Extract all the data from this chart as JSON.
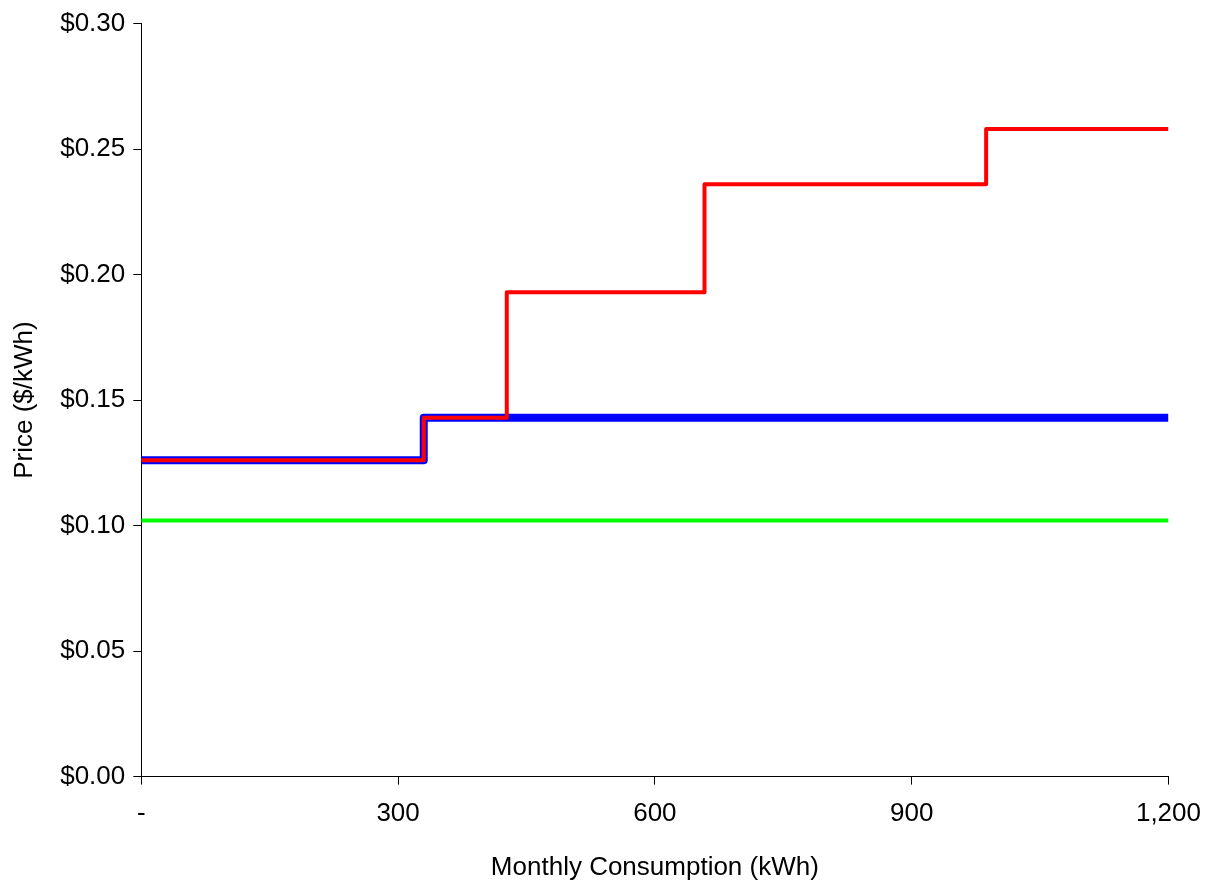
{
  "chart_data": {
    "type": "step",
    "xlabel": "Monthly Consumption (kWh)",
    "ylabel": "Price ($/kWh)",
    "xlim": [
      0,
      1200
    ],
    "xticks": [
      {
        "value": 0,
        "label": "-"
      },
      300,
      600,
      900,
      {
        "value": 1200,
        "label": "1,200"
      }
    ],
    "ylim": [
      0,
      0.3
    ],
    "yticks": [
      {
        "value": 0,
        "label": "$0.00"
      },
      {
        "value": 0.05,
        "label": "$0.05"
      },
      {
        "value": 0.1,
        "label": "$0.10"
      },
      {
        "value": 0.15,
        "label": "$0.15"
      },
      {
        "value": 0.2,
        "label": "$0.20"
      },
      {
        "value": 0.25,
        "label": "$0.25"
      },
      {
        "value": 0.3,
        "label": "$0.30"
      }
    ],
    "grid": false,
    "legend": false,
    "marker": "none",
    "series": [
      {
        "color": "#00ff00",
        "x": [
          0,
          1200
        ],
        "values": [
          0.102,
          0.102
        ]
      },
      {
        "color": "#ff0000",
        "x": [
          0,
          330,
          427,
          658,
          987,
          1200
        ],
        "values": [
          0.126,
          0.143,
          0.193,
          0.236,
          0.258,
          0.258
        ]
      },
      {
        "color": "#0000ff",
        "x": [
          0,
          330,
          1200
        ],
        "values": [
          0.126,
          0.143,
          0.143
        ]
      }
    ]
  }
}
